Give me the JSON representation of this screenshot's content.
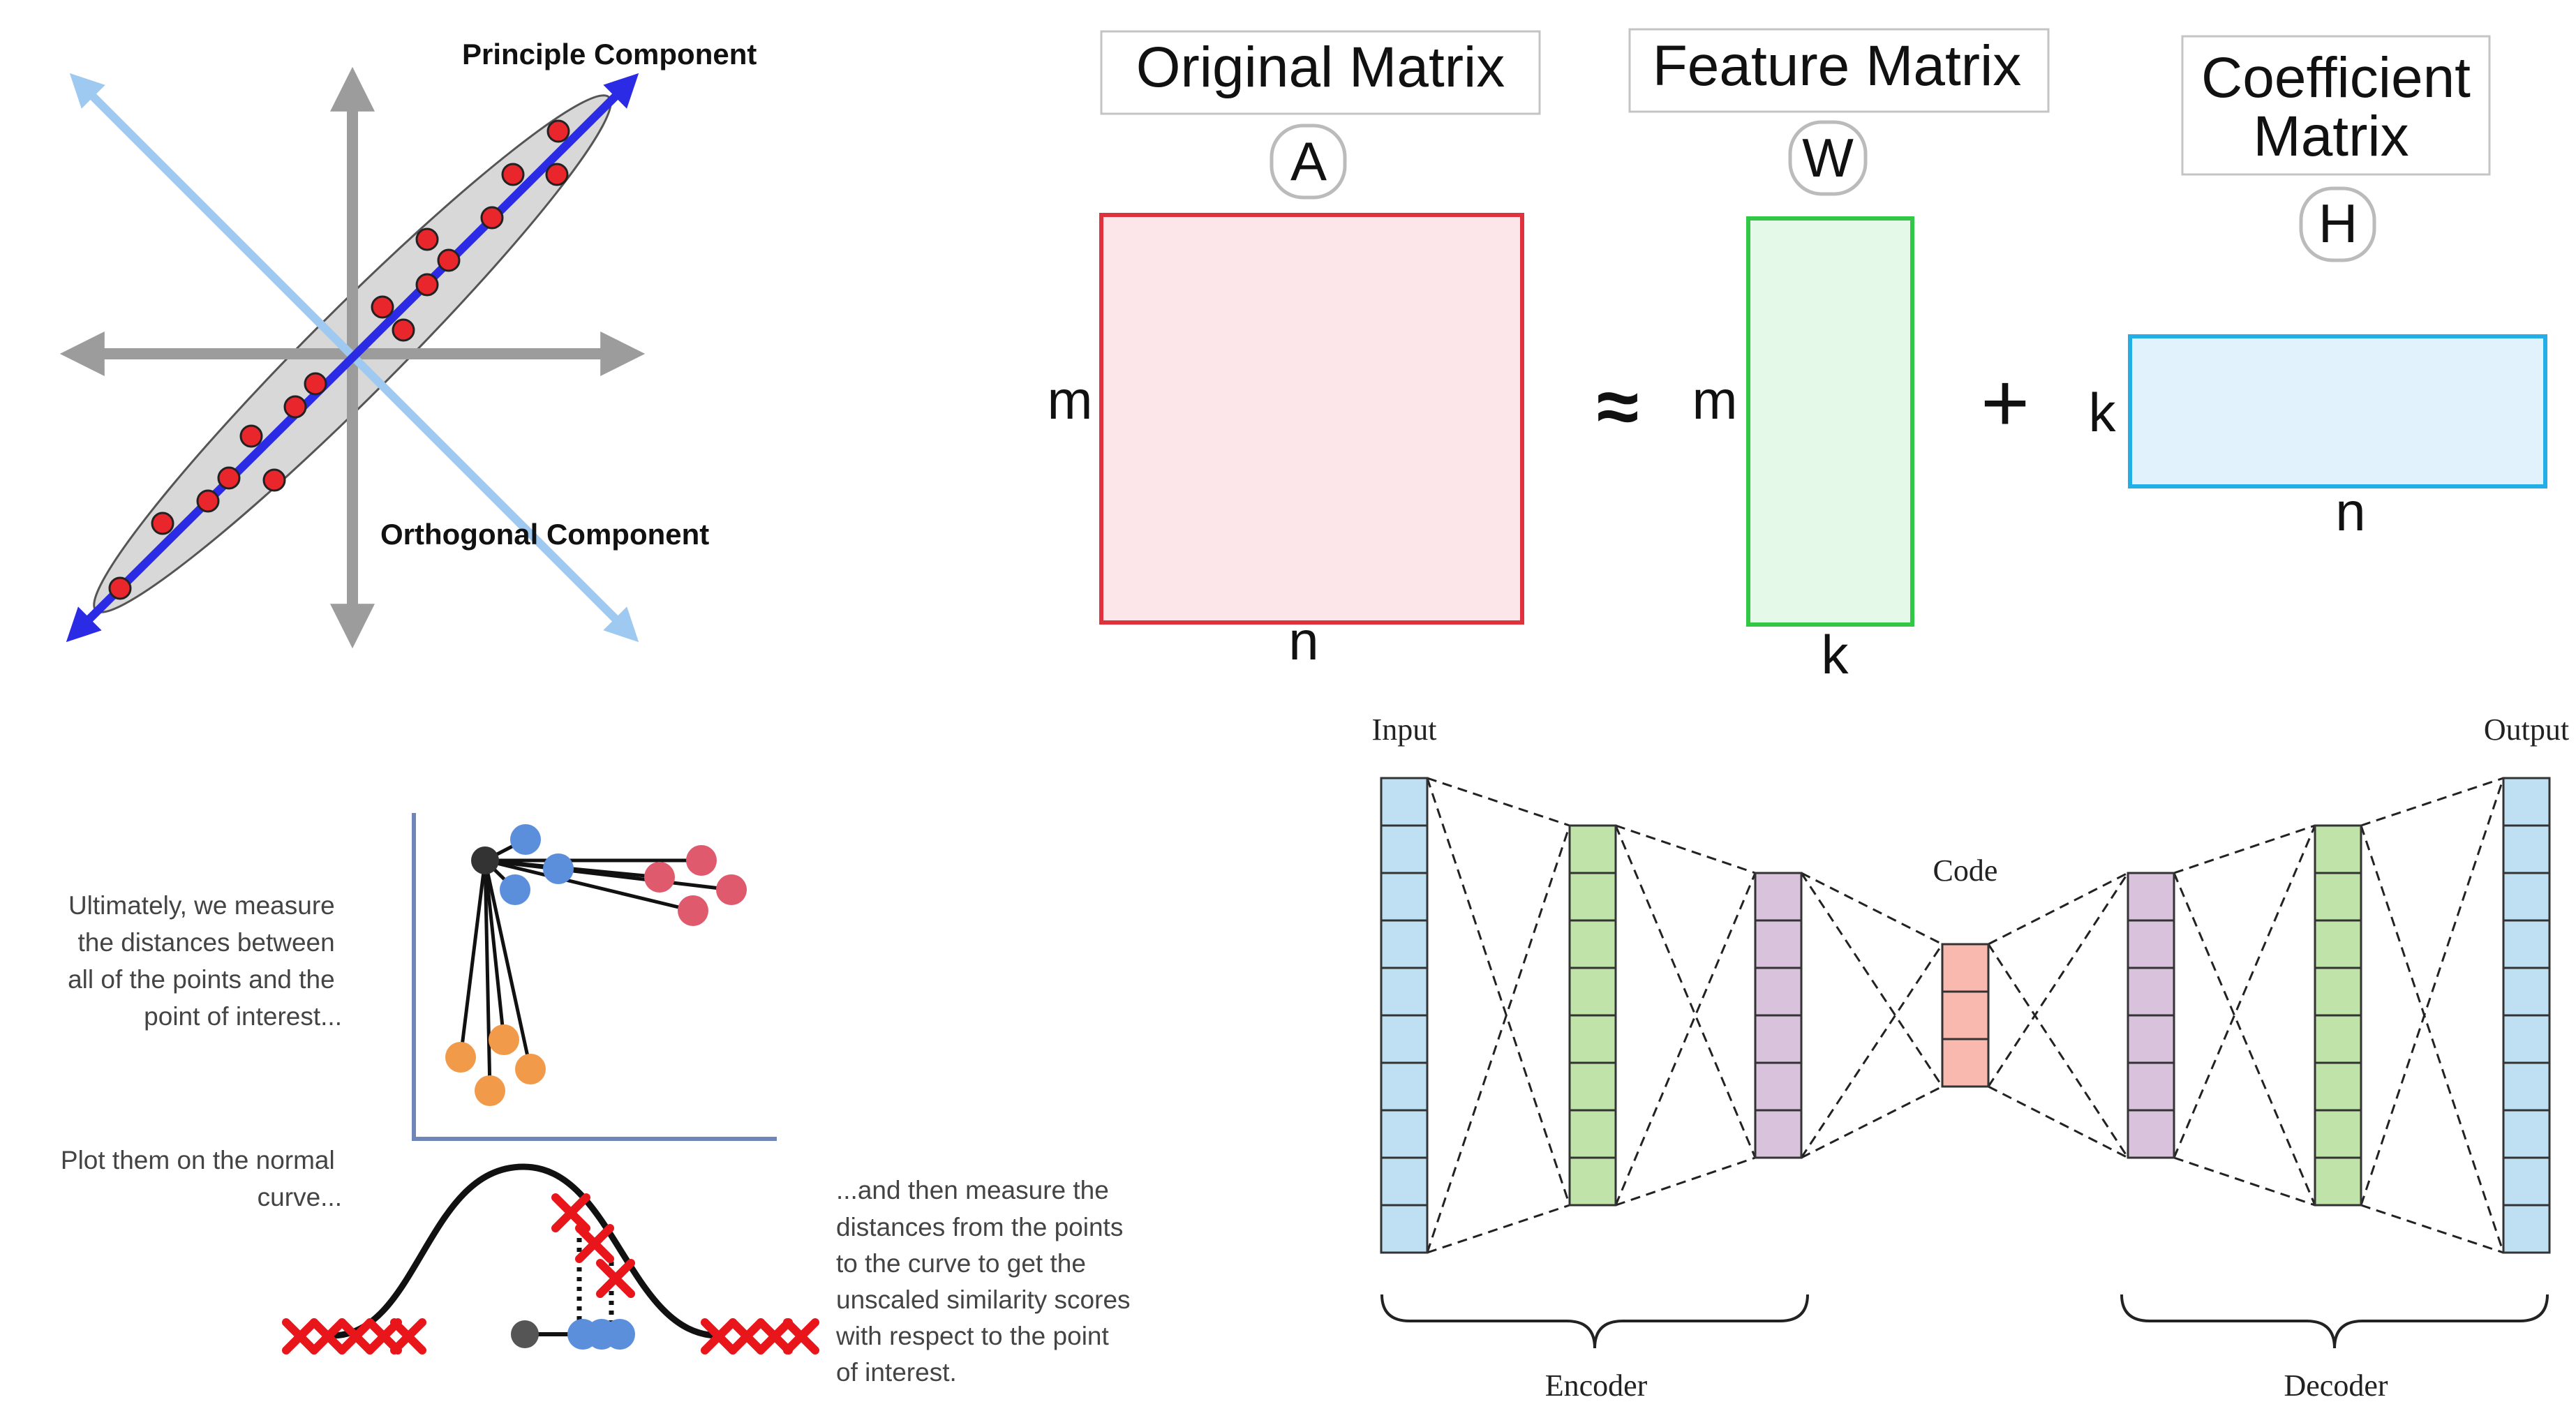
{
  "pca": {
    "principal_label": "Principle Component",
    "orthogonal_label": "Orthogonal Component",
    "colors": {
      "principal_axis": "#2b2be6",
      "orthogonal_axis": "#9ec9f0",
      "point": "#e8262b",
      "ellipse": "#d8d8d8",
      "cartesian_axes": "#9c9c9c"
    }
  },
  "nmf": {
    "original": {
      "title": "Original Matrix",
      "symbol": "A",
      "row_label": "m",
      "col_label": "n",
      "fill": "#fce6ea",
      "stroke": "#e0323c"
    },
    "approx_sign": "≈",
    "feature": {
      "title": "Feature Matrix",
      "symbol": "W",
      "row_label": "m",
      "col_label": "k",
      "fill": "#e4f9e8",
      "stroke": "#32c846"
    },
    "plus_sign": "+",
    "coefficient": {
      "title_line1": "Coefficient",
      "title_line2": "Matrix",
      "symbol": "H",
      "row_label": "k",
      "col_label": "n",
      "fill": "#e2f2fc",
      "stroke": "#23aee8"
    }
  },
  "tsne": {
    "text_measure": [
      "Ultimately, we measure",
      "the distances between",
      "all of the points and the",
      "point of interest..."
    ],
    "text_plot": [
      "Plot them on the normal",
      "curve..."
    ],
    "text_then": [
      "...and then measure the",
      "distances from the points",
      "to the curve to get the",
      "unscaled similarity scores",
      "with respect to the point",
      "of interest."
    ],
    "colors": {
      "interest": "#333333",
      "blue": "#5b8fdc",
      "red": "#e05a6e",
      "orange": "#f09a4a",
      "cross": "#e8151b"
    }
  },
  "autoencoder": {
    "input_label": "Input",
    "output_label": "Output",
    "code_label": "Code",
    "encoder_label": "Encoder",
    "decoder_label": "Decoder",
    "layers": [
      {
        "name": "input",
        "units": 10,
        "color": "#bfe0f2"
      },
      {
        "name": "hidden-1",
        "units": 8,
        "color": "#bfe3a8"
      },
      {
        "name": "hidden-2",
        "units": 6,
        "color": "#d9c2dc"
      },
      {
        "name": "code",
        "units": 3,
        "color": "#f9b9ae"
      },
      {
        "name": "hidden-3",
        "units": 6,
        "color": "#d9c2dc"
      },
      {
        "name": "hidden-4",
        "units": 8,
        "color": "#bfe3a8"
      },
      {
        "name": "output",
        "units": 10,
        "color": "#bfe0f2"
      }
    ]
  }
}
